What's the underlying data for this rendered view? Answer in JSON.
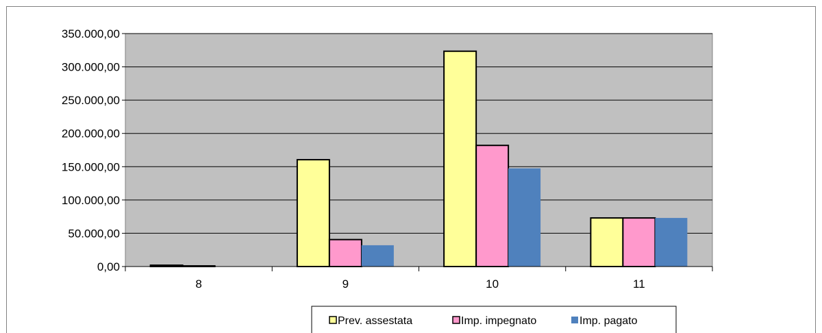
{
  "chart_data": {
    "type": "bar",
    "categories": [
      "8",
      "9",
      "10",
      "11"
    ],
    "series": [
      {
        "name": "Prev. assestata",
        "values": [
          2000,
          160500,
          323500,
          73000
        ],
        "color": "#FFFF99"
      },
      {
        "name": "Imp. impegnato",
        "values": [
          1000,
          40500,
          182000,
          73000
        ],
        "color": "#FF99CC"
      },
      {
        "name": "Imp. pagato",
        "values": [
          0,
          32000,
          147500,
          73000
        ],
        "color": "#4F81BD"
      }
    ],
    "ylim": [
      0,
      350000
    ],
    "yticks": [
      "0,00",
      "50.000,00",
      "100.000,00",
      "150.000,00",
      "200.000,00",
      "250.000,00",
      "300.000,00",
      "350.000,00"
    ],
    "grid": true,
    "legend_position": "bottom",
    "plot_background": "#C0C0C0"
  }
}
